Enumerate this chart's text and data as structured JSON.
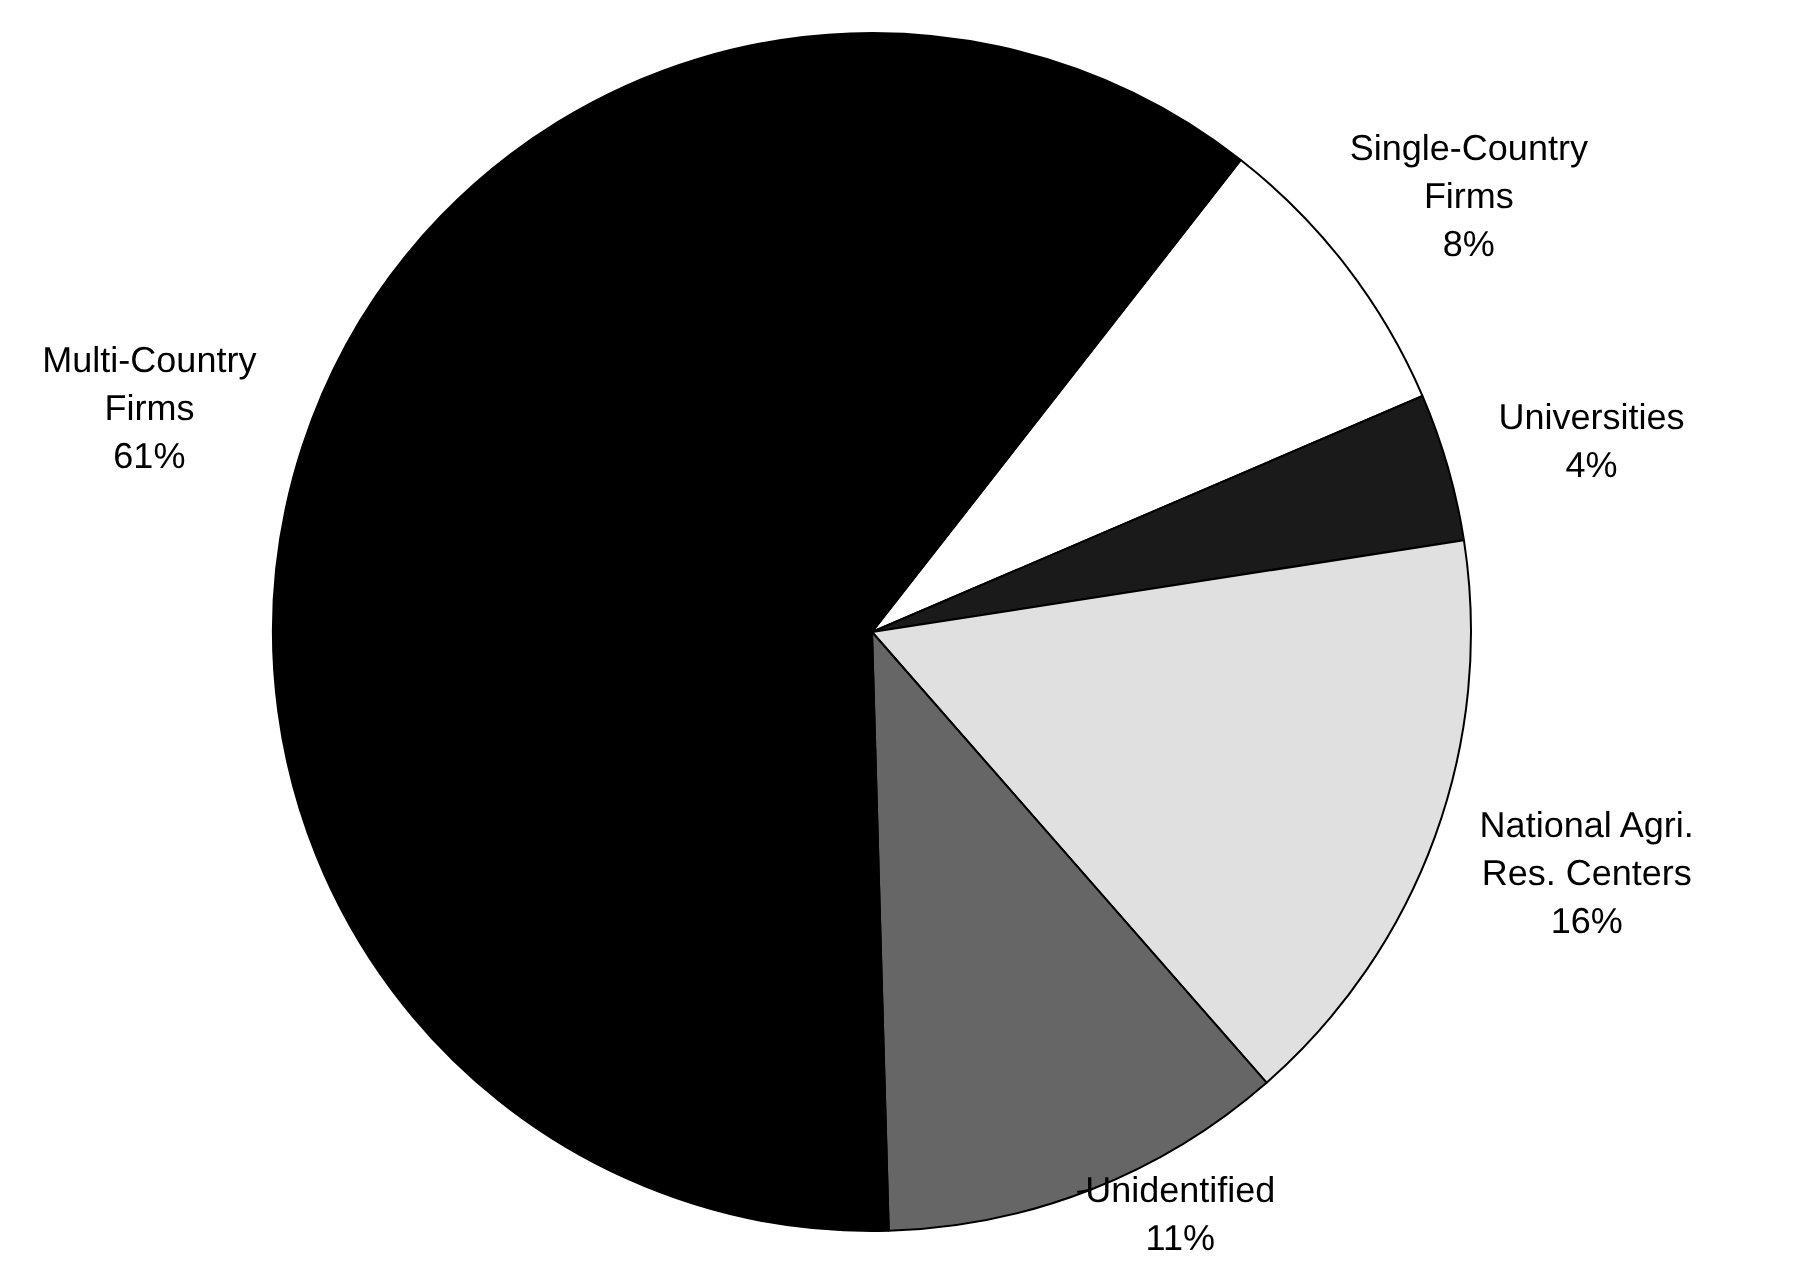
{
  "chart_data": {
    "type": "pie",
    "categories": [
      "Single-Country Firms",
      "Universities",
      "National Agri. Res. Centers",
      "Unidentified",
      "Multi-Country Firms"
    ],
    "values": [
      8,
      4,
      16,
      11,
      61
    ],
    "value_labels": [
      "8%",
      "4%",
      "16%",
      "11%",
      "61%"
    ],
    "colors": [
      "#ffffff",
      "#1a1a1a",
      "#e0e0e0",
      "#666666",
      "#000000"
    ],
    "legend": false
  }
}
